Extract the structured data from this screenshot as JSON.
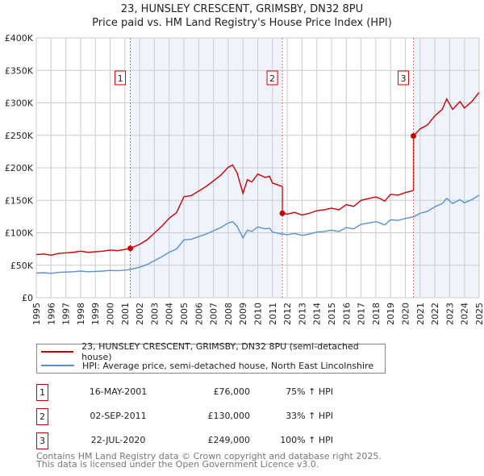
{
  "title": "23, HUNSLEY CRESCENT, GRIMSBY, DN32 8PU",
  "subtitle": "Price paid vs. HM Land Registry's House Price Index (HPI)",
  "chart_data": {
    "type": "line",
    "xlim": [
      1995,
      2025
    ],
    "ylim": [
      0,
      400000
    ],
    "ytick_labels": [
      "£0",
      "£50K",
      "£100K",
      "£150K",
      "£200K",
      "£250K",
      "£300K",
      "£350K",
      "£400K"
    ],
    "ytick_values": [
      0,
      50000,
      100000,
      150000,
      200000,
      250000,
      300000,
      350000,
      400000
    ],
    "xtick_labels": [
      "1995",
      "1996",
      "1997",
      "1998",
      "1999",
      "2000",
      "2001",
      "2002",
      "2003",
      "2004",
      "2005",
      "2006",
      "2007",
      "2008",
      "2009",
      "2010",
      "2011",
      "2012",
      "2013",
      "2014",
      "2015",
      "2016",
      "2017",
      "2018",
      "2019",
      "2020",
      "2021",
      "2022",
      "2023",
      "2024",
      "2025"
    ],
    "grid": true,
    "colors": {
      "property": "#cc0000",
      "hpi": "#5b8fd0",
      "shade": "#eef3fc"
    },
    "hpi_series": {
      "name": "HPI: Average price, semi-detached house, North East Lincolnshire",
      "x": [
        1995,
        1995.5,
        1996,
        1996.5,
        1997,
        1997.5,
        1998,
        1998.5,
        1999,
        1999.5,
        2000,
        2000.5,
        2001,
        2001.37,
        2002,
        2002.5,
        2003,
        2003.5,
        2004,
        2004.5,
        2005,
        2005.5,
        2006,
        2006.5,
        2007,
        2007.5,
        2008,
        2008.3,
        2008.6,
        2009,
        2009.3,
        2009.6,
        2010,
        2010.5,
        2010.8,
        2011,
        2011.67,
        2012,
        2012.5,
        2013,
        2013.5,
        2014,
        2014.5,
        2015,
        2015.5,
        2016,
        2016.5,
        2017,
        2017.5,
        2018,
        2018.3,
        2018.6,
        2019,
        2019.5,
        2020,
        2020.55,
        2021,
        2021.5,
        2022,
        2022.5,
        2022.8,
        2023.2,
        2023.7,
        2024,
        2024.5,
        2025
      ],
      "y": [
        38000,
        38500,
        37500,
        39000,
        39500,
        40000,
        41000,
        40000,
        40500,
        41000,
        42000,
        41500,
        42500,
        43500,
        47000,
        51000,
        57000,
        63000,
        70000,
        75000,
        89000,
        90000,
        94000,
        98000,
        103000,
        108000,
        115000,
        117000,
        110000,
        92000,
        104000,
        102000,
        109000,
        106000,
        107000,
        101000,
        98000,
        97000,
        99000,
        96000,
        98000,
        101000,
        102000,
        104000,
        102000,
        108000,
        106000,
        113000,
        115000,
        117000,
        115000,
        112000,
        120000,
        119000,
        122000,
        124500,
        130000,
        133000,
        140000,
        145000,
        153000,
        145000,
        151000,
        146000,
        151000,
        158000
      ]
    },
    "property_series": {
      "name": "23, HUNSLEY CRESCENT, GRIMSBY, DN32 8PU (semi-detached house)"
    },
    "sales": [
      {
        "label": "1",
        "date": "16-MAY-2001",
        "x": 2001.37,
        "price": 76000,
        "price_label": "£76,000",
        "hpi_diff": "75% ↑ HPI"
      },
      {
        "label": "2",
        "date": "02-SEP-2011",
        "x": 2011.67,
        "price": 130000,
        "price_label": "£130,000",
        "hpi_diff": "33% ↑ HPI"
      },
      {
        "label": "3",
        "date": "22-JUL-2020",
        "x": 2020.55,
        "price": 249000,
        "price_label": "£249,000",
        "hpi_diff": "100% ↑ HPI"
      }
    ]
  },
  "legend": {
    "property": "23, HUNSLEY CRESCENT, GRIMSBY, DN32 8PU (semi-detached house)",
    "hpi": "HPI: Average price, semi-detached house, North East Lincolnshire"
  },
  "footer": [
    "Contains HM Land Registry data © Crown copyright and database right 2025.",
    "This data is licensed under the Open Government Licence v3.0."
  ]
}
